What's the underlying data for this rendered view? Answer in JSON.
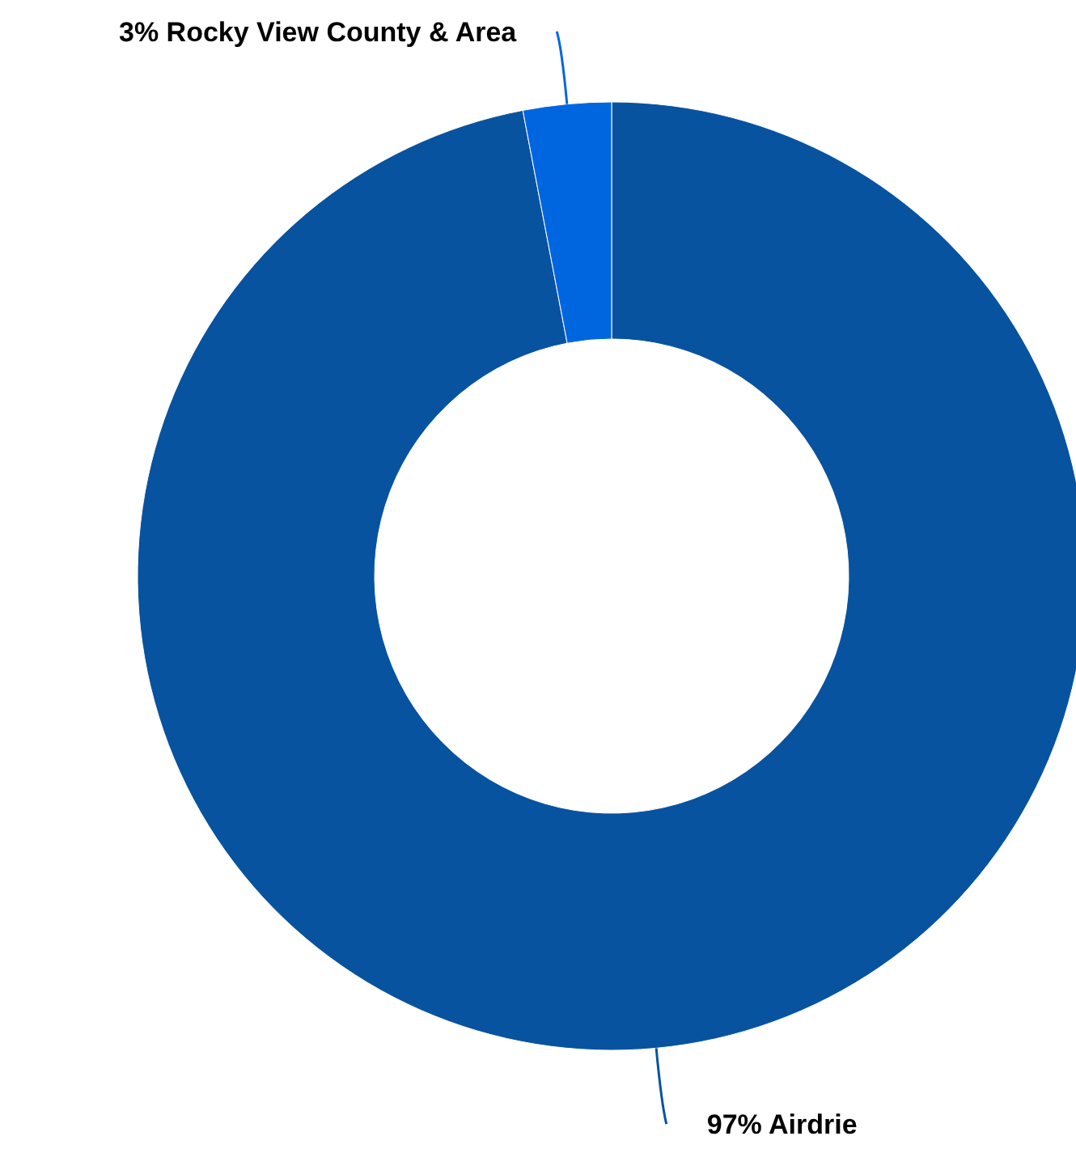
{
  "chart_data": {
    "type": "donut",
    "categories": [
      "Airdrie",
      "Rocky View County & Area"
    ],
    "values": [
      97,
      3
    ],
    "value_labels": [
      "97%",
      "3%"
    ],
    "colors": [
      "#08539f",
      "#0066e0"
    ]
  }
}
